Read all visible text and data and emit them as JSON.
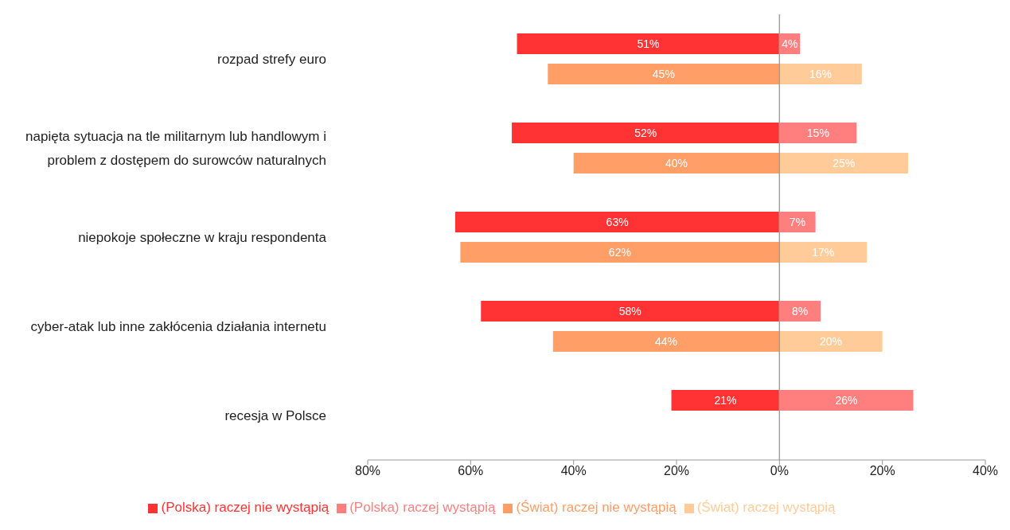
{
  "chart_data": {
    "type": "bar",
    "orientation": "horizontal",
    "categories": [
      "rozpad strefy euro",
      "napięta sytuacja na tle militarnym lub handlowym i problem z dostępem do surowców naturalnych",
      "niepokoje społeczne w kraju respondenta",
      "cyber-atak lub inne zakłócenia działania internetu",
      "recesja w Polsce"
    ],
    "series": [
      {
        "name": "(Polska) raczej nie wystąpią",
        "color": "#ff3333",
        "base": [
          -51,
          -52,
          -63,
          -58,
          -21
        ],
        "values": [
          51,
          52,
          63,
          58,
          21
        ],
        "value_labels": [
          "51%",
          "52%",
          "63%",
          "58%",
          "21%"
        ]
      },
      {
        "name": "(Polska) raczej wystąpią",
        "color": "#ff7f7f",
        "values": [
          4,
          15,
          7,
          8,
          26
        ],
        "value_labels": [
          "4%",
          "15%",
          "7%",
          "8%",
          "26%"
        ]
      },
      {
        "name": "(Świat) raczej nie wystąpią",
        "color": "#ff9e66",
        "base": [
          -45,
          -40,
          -62,
          -44,
          null
        ],
        "values": [
          45,
          40,
          62,
          44,
          null
        ],
        "value_labels": [
          "45%",
          "40%",
          "62%",
          "44%",
          null
        ]
      },
      {
        "name": "(Świat) raczej wystąpią",
        "color": "#ffcc99",
        "values": [
          16,
          25,
          17,
          20,
          null
        ],
        "value_labels": [
          "16%",
          "25%",
          "17%",
          "20%",
          null
        ]
      }
    ],
    "xlim": [
      -80,
      40
    ],
    "xticks": [
      {
        "value": -80,
        "label": "80%"
      },
      {
        "value": -60,
        "label": "60%"
      },
      {
        "value": -40,
        "label": "40%"
      },
      {
        "value": -20,
        "label": "20%"
      },
      {
        "value": 0,
        "label": "0%"
      },
      {
        "value": 20,
        "label": "20%"
      },
      {
        "value": 40,
        "label": "40%"
      }
    ],
    "ref_lines": [
      {
        "axis": "x",
        "value": 0,
        "color": "#a0a0a0"
      }
    ],
    "legend": "bottom",
    "grid": false
  }
}
